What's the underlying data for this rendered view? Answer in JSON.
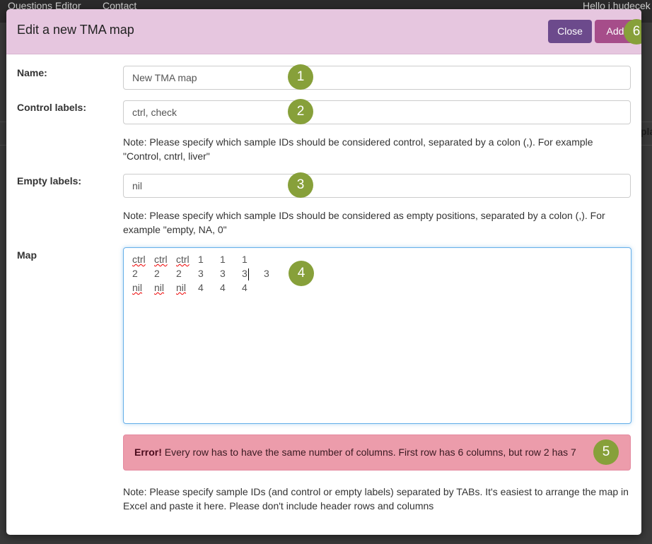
{
  "background": {
    "nav_items": [
      "Questions Editor",
      "Contact"
    ],
    "user_greeting": "Hello j.hudecek",
    "partial_text": "pla"
  },
  "modal": {
    "title": "Edit a new TMA map",
    "close_label": "Close",
    "add_label": "Add",
    "fields": {
      "name": {
        "label": "Name:",
        "value": "New TMA map"
      },
      "control": {
        "label": "Control labels:",
        "value": "ctrl, check",
        "note": "Note: Please specify which sample IDs should be considered control, separated by a colon (,). For example \"Control, cntrl, liver\""
      },
      "empty": {
        "label": "Empty labels:",
        "value": "nil",
        "note": "Note: Please specify which sample IDs should be considered as empty positions, separated by a colon (,). For example \"empty, NA, 0\""
      },
      "map": {
        "label": "Map",
        "rows": [
          [
            "ctrl",
            "ctrl",
            "ctrl",
            "1",
            "1",
            "1"
          ],
          [
            "2",
            "2",
            "2",
            "3",
            "3",
            "3",
            "3"
          ],
          [
            "nil",
            "nil",
            "nil",
            "4",
            "4",
            "4"
          ]
        ],
        "note": "Note: Please specify sample IDs (and control or empty labels) separated by TABs. It's easiest to arrange the map in Excel and paste it here. Please don't include header rows and columns"
      }
    },
    "error": {
      "strong": "Error!",
      "message": " Every row has to have the same number of columns. First row has 6 columns, but row 2 has 7"
    },
    "annotations": [
      "1",
      "2",
      "3",
      "4",
      "5",
      "6"
    ]
  }
}
